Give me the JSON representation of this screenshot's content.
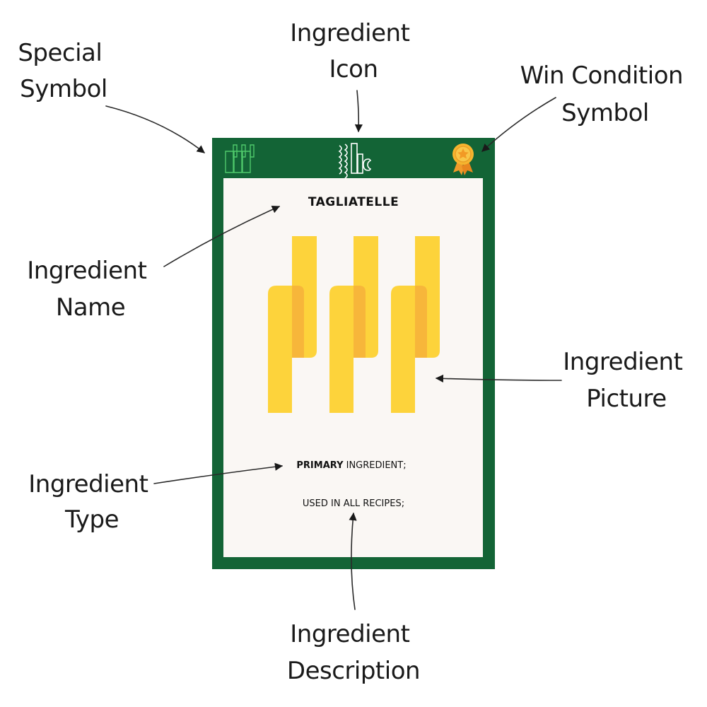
{
  "card": {
    "name": "TAGLIATELLE",
    "type_bold": "PRIMARY",
    "type_rest": " INGREDIENT;",
    "description": "USED IN ALL RECIPES;",
    "colors": {
      "frame": "#136436",
      "panel": "#faf7f4",
      "pasta_light": "#fdd33b",
      "pasta_dark": "#f7b63a",
      "icon_outline": "#ffffff",
      "special_outline": "#4fc96b",
      "medal": "#f6b52f"
    },
    "icons": {
      "special_symbol": "pasta-strips-outline-icon",
      "ingredient_icon": "pasta-bundle-icon",
      "win_condition_symbol": "award-medal-icon"
    }
  },
  "callouts": {
    "special_symbol": [
      "Special",
      "Symbol"
    ],
    "ingredient_icon": [
      "Ingredient",
      "Icon"
    ],
    "win_condition": [
      "Win Condition",
      "Symbol"
    ],
    "ingredient_name": [
      "Ingredient",
      "Name"
    ],
    "ingredient_picture": [
      "Ingredient",
      "Picture"
    ],
    "ingredient_type": [
      "Ingredient",
      "Type"
    ],
    "ingredient_description": [
      "Ingredient",
      "Description"
    ]
  }
}
